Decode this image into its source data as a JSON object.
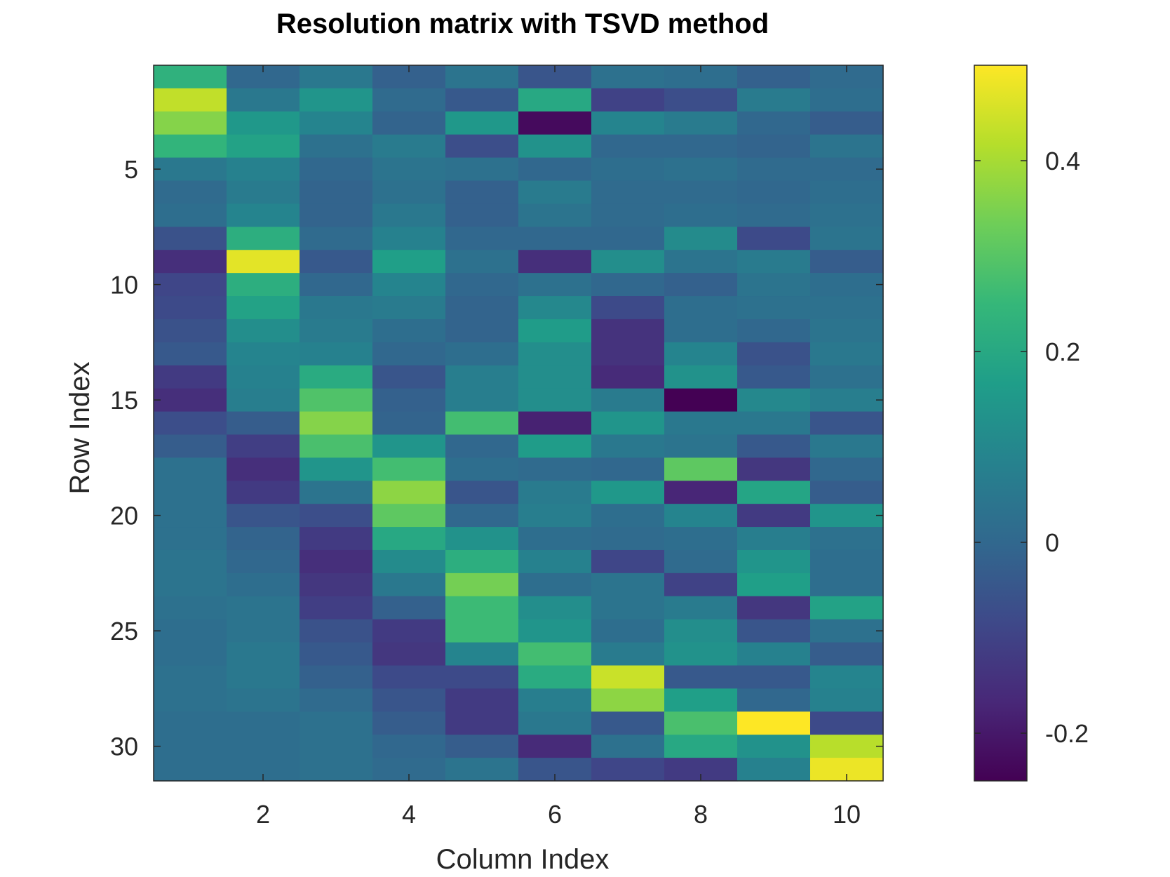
{
  "chart_data": {
    "type": "heatmap",
    "title": "Resolution matrix with TSVD method",
    "xlabel": "Column Index",
    "ylabel": "Row Index",
    "x_ticks": [
      2,
      4,
      6,
      8,
      10
    ],
    "y_ticks": [
      5,
      10,
      15,
      20,
      25,
      30
    ],
    "colorbar_ticks": [
      -0.2,
      0,
      0.2,
      0.4
    ],
    "colormap": "viridis",
    "clim": [
      -0.25,
      0.5
    ],
    "grid": false,
    "n_rows": 31,
    "n_cols": 10,
    "values": [
      [
        0.23,
        0.0,
        0.05,
        -0.02,
        0.04,
        -0.05,
        0.03,
        0.02,
        -0.02,
        0.01
      ],
      [
        0.43,
        0.05,
        0.14,
        0.01,
        -0.04,
        0.2,
        -0.1,
        -0.07,
        0.06,
        0.02
      ],
      [
        0.36,
        0.15,
        0.09,
        -0.01,
        0.15,
        -0.23,
        0.09,
        0.06,
        0.0,
        -0.03
      ],
      [
        0.24,
        0.18,
        0.03,
        0.06,
        -0.07,
        0.13,
        0.0,
        0.0,
        -0.01,
        0.04
      ],
      [
        0.05,
        0.08,
        0.0,
        0.04,
        0.03,
        0.0,
        0.02,
        0.03,
        0.01,
        0.01
      ],
      [
        0.01,
        0.06,
        -0.01,
        0.03,
        -0.02,
        0.06,
        0.01,
        0.01,
        0.0,
        0.02
      ],
      [
        0.02,
        0.09,
        -0.01,
        0.05,
        -0.02,
        0.04,
        0.01,
        0.02,
        0.01,
        0.03
      ],
      [
        -0.06,
        0.22,
        0.01,
        0.08,
        0.0,
        0.0,
        0.0,
        0.11,
        -0.08,
        0.04
      ],
      [
        -0.15,
        0.47,
        -0.04,
        0.17,
        0.03,
        -0.15,
        0.12,
        0.04,
        0.06,
        -0.03
      ],
      [
        -0.09,
        0.22,
        0.0,
        0.09,
        0.0,
        0.03,
        0.0,
        -0.02,
        0.04,
        0.02
      ],
      [
        -0.08,
        0.18,
        0.05,
        0.06,
        -0.01,
        0.1,
        -0.08,
        0.02,
        0.03,
        0.03
      ],
      [
        -0.06,
        0.12,
        0.06,
        0.02,
        -0.01,
        0.16,
        -0.14,
        0.02,
        0.0,
        0.04
      ],
      [
        -0.04,
        0.09,
        0.08,
        0.0,
        0.02,
        0.12,
        -0.14,
        0.09,
        -0.06,
        0.05
      ],
      [
        -0.12,
        0.08,
        0.21,
        -0.05,
        0.07,
        0.12,
        -0.16,
        0.13,
        -0.04,
        0.03
      ],
      [
        -0.15,
        0.07,
        0.29,
        -0.02,
        0.07,
        0.12,
        0.06,
        -0.26,
        0.1,
        0.07
      ],
      [
        -0.07,
        -0.03,
        0.36,
        -0.01,
        0.27,
        -0.18,
        0.14,
        0.05,
        0.05,
        -0.05
      ],
      [
        -0.03,
        -0.11,
        0.28,
        0.14,
        0.0,
        0.16,
        0.05,
        0.04,
        -0.04,
        0.05
      ],
      [
        0.03,
        -0.15,
        0.14,
        0.27,
        0.02,
        0.01,
        0.0,
        0.31,
        -0.13,
        0.0
      ],
      [
        0.03,
        -0.12,
        0.04,
        0.37,
        -0.05,
        0.06,
        0.15,
        -0.17,
        0.19,
        -0.03
      ],
      [
        0.03,
        -0.05,
        -0.07,
        0.31,
        0.0,
        0.07,
        0.02,
        0.09,
        -0.12,
        0.14
      ],
      [
        0.03,
        -0.01,
        -0.12,
        0.2,
        0.13,
        0.02,
        0.01,
        0.02,
        0.07,
        0.03
      ],
      [
        0.04,
        0.0,
        -0.15,
        0.11,
        0.22,
        0.08,
        -0.09,
        0.01,
        0.14,
        0.02
      ],
      [
        0.04,
        0.02,
        -0.13,
        0.05,
        0.34,
        0.02,
        0.04,
        -0.1,
        0.17,
        0.02
      ],
      [
        0.03,
        0.04,
        -0.11,
        -0.02,
        0.26,
        0.12,
        0.04,
        0.06,
        -0.13,
        0.18
      ],
      [
        0.02,
        0.04,
        -0.06,
        -0.12,
        0.26,
        0.14,
        0.02,
        0.12,
        -0.05,
        0.03
      ],
      [
        0.02,
        0.05,
        -0.04,
        -0.13,
        0.09,
        0.27,
        0.06,
        0.13,
        0.08,
        -0.03
      ],
      [
        0.03,
        0.05,
        -0.02,
        -0.08,
        -0.08,
        0.21,
        0.44,
        -0.04,
        -0.04,
        0.09
      ],
      [
        0.03,
        0.04,
        0.01,
        -0.05,
        -0.12,
        0.07,
        0.37,
        0.17,
        0.0,
        0.08
      ],
      [
        0.02,
        0.02,
        0.03,
        -0.03,
        -0.12,
        0.05,
        -0.04,
        0.28,
        0.5,
        -0.08
      ],
      [
        0.02,
        0.02,
        0.03,
        0.0,
        -0.03,
        -0.16,
        0.03,
        0.2,
        0.13,
        0.42
      ],
      [
        0.02,
        0.02,
        0.03,
        0.01,
        0.04,
        -0.05,
        -0.09,
        -0.12,
        0.08,
        0.48
      ]
    ]
  }
}
